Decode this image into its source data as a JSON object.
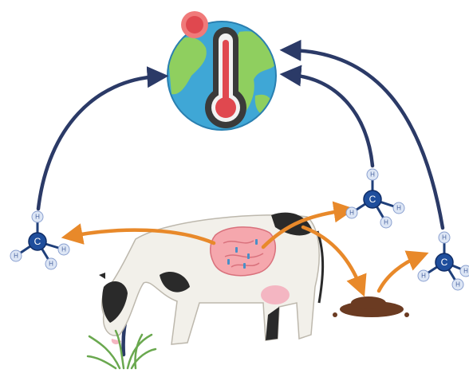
{
  "molecules": [
    {
      "center": "C",
      "hydrogens": [
        "H",
        "H",
        "H",
        "H"
      ]
    },
    {
      "center": "C",
      "hydrogens": [
        "H",
        "H",
        "H",
        "H"
      ]
    },
    {
      "center": "C",
      "hydrogens": [
        "H",
        "H",
        "H",
        "H"
      ]
    }
  ]
}
